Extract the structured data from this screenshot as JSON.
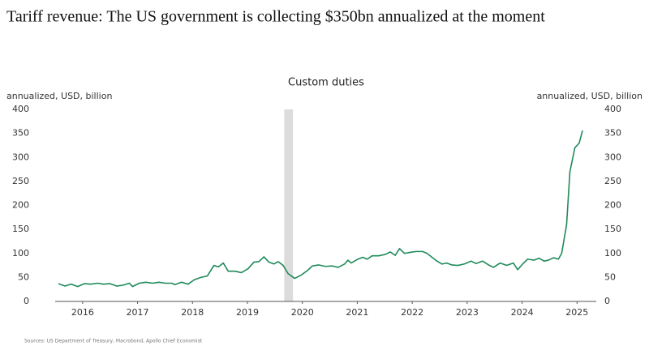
{
  "chart_data": {
    "type": "line",
    "title": "Tariff revenue: The US government is collecting $350bn annualized at the moment",
    "subtitle": "Custom duties",
    "ylabel": "annualized, USD, billion",
    "y2label": "annualized, USD, billion",
    "source": "Sources: US Department of Treasury, Macrobond, Apollo Chief Economist",
    "xlim": [
      2016.0,
      2025.85
    ],
    "xticks": [
      {
        "value": 2016.5,
        "label": "2016"
      },
      {
        "value": 2017.5,
        "label": "2017"
      },
      {
        "value": 2018.5,
        "label": "2018"
      },
      {
        "value": 2019.5,
        "label": "2019"
      },
      {
        "value": 2020.5,
        "label": "2020"
      },
      {
        "value": 2021.5,
        "label": "2021"
      },
      {
        "value": 2022.5,
        "label": "2022"
      },
      {
        "value": 2023.5,
        "label": "2023"
      },
      {
        "value": 2024.5,
        "label": "2024"
      },
      {
        "value": 2025.5,
        "label": "2025"
      }
    ],
    "ylim": [
      0,
      400
    ],
    "yticks": [
      0,
      50,
      100,
      150,
      200,
      250,
      300,
      350,
      400
    ],
    "y2lim": [
      0,
      400
    ],
    "y2ticks": [
      0,
      50,
      100,
      150,
      200,
      250,
      300,
      350,
      400
    ],
    "shaded_x": [
      2020.17,
      2020.33
    ],
    "shade_color": "#dcdcdc",
    "grid": false,
    "x": [
      2016.06,
      2016.18,
      2016.29,
      2016.41,
      2016.53,
      2016.65,
      2016.77,
      2016.88,
      2017.0,
      2017.12,
      2017.24,
      2017.35,
      2017.41,
      2017.53,
      2017.65,
      2017.77,
      2017.89,
      2018.0,
      2018.12,
      2018.18,
      2018.3,
      2018.42,
      2018.53,
      2018.65,
      2018.77,
      2018.89,
      2018.97,
      2019.06,
      2019.15,
      2019.27,
      2019.39,
      2019.51,
      2019.62,
      2019.71,
      2019.8,
      2019.89,
      2019.98,
      2020.06,
      2020.15,
      2020.24,
      2020.36,
      2020.48,
      2020.6,
      2020.68,
      2020.8,
      2020.92,
      2021.04,
      2021.15,
      2021.27,
      2021.33,
      2021.39,
      2021.51,
      2021.6,
      2021.68,
      2021.77,
      2021.89,
      2022.01,
      2022.1,
      2022.19,
      2022.27,
      2022.36,
      2022.45,
      2022.57,
      2022.69,
      2022.77,
      2022.86,
      2022.95,
      2023.04,
      2023.13,
      2023.22,
      2023.33,
      2023.45,
      2023.57,
      2023.66,
      2023.78,
      2023.89,
      2023.98,
      2024.1,
      2024.22,
      2024.34,
      2024.42,
      2024.51,
      2024.6,
      2024.72,
      2024.81,
      2024.9,
      2024.98,
      2025.07,
      2025.16,
      2025.22,
      2025.31,
      2025.37,
      2025.46,
      2025.54,
      2025.6
    ],
    "series": [
      {
        "color": "#1f8a5a",
        "values": [
          37,
          32,
          36,
          31,
          37,
          36,
          38,
          36,
          37,
          32,
          34,
          38,
          31,
          38,
          40,
          38,
          40,
          38,
          38,
          35,
          40,
          36,
          45,
          50,
          53,
          75,
          72,
          80,
          63,
          63,
          60,
          68,
          82,
          83,
          93,
          82,
          78,
          83,
          75,
          58,
          48,
          55,
          65,
          74,
          76,
          73,
          74,
          71,
          78,
          86,
          80,
          88,
          92,
          88,
          95,
          95,
          98,
          103,
          96,
          110,
          100,
          102,
          104,
          104,
          100,
          92,
          84,
          78,
          80,
          76,
          75,
          78,
          84,
          79,
          84,
          76,
          71,
          80,
          75,
          80,
          66,
          78,
          88,
          86,
          90,
          84,
          86,
          91,
          88,
          100,
          160,
          270,
          320,
          330,
          356
        ]
      }
    ]
  }
}
